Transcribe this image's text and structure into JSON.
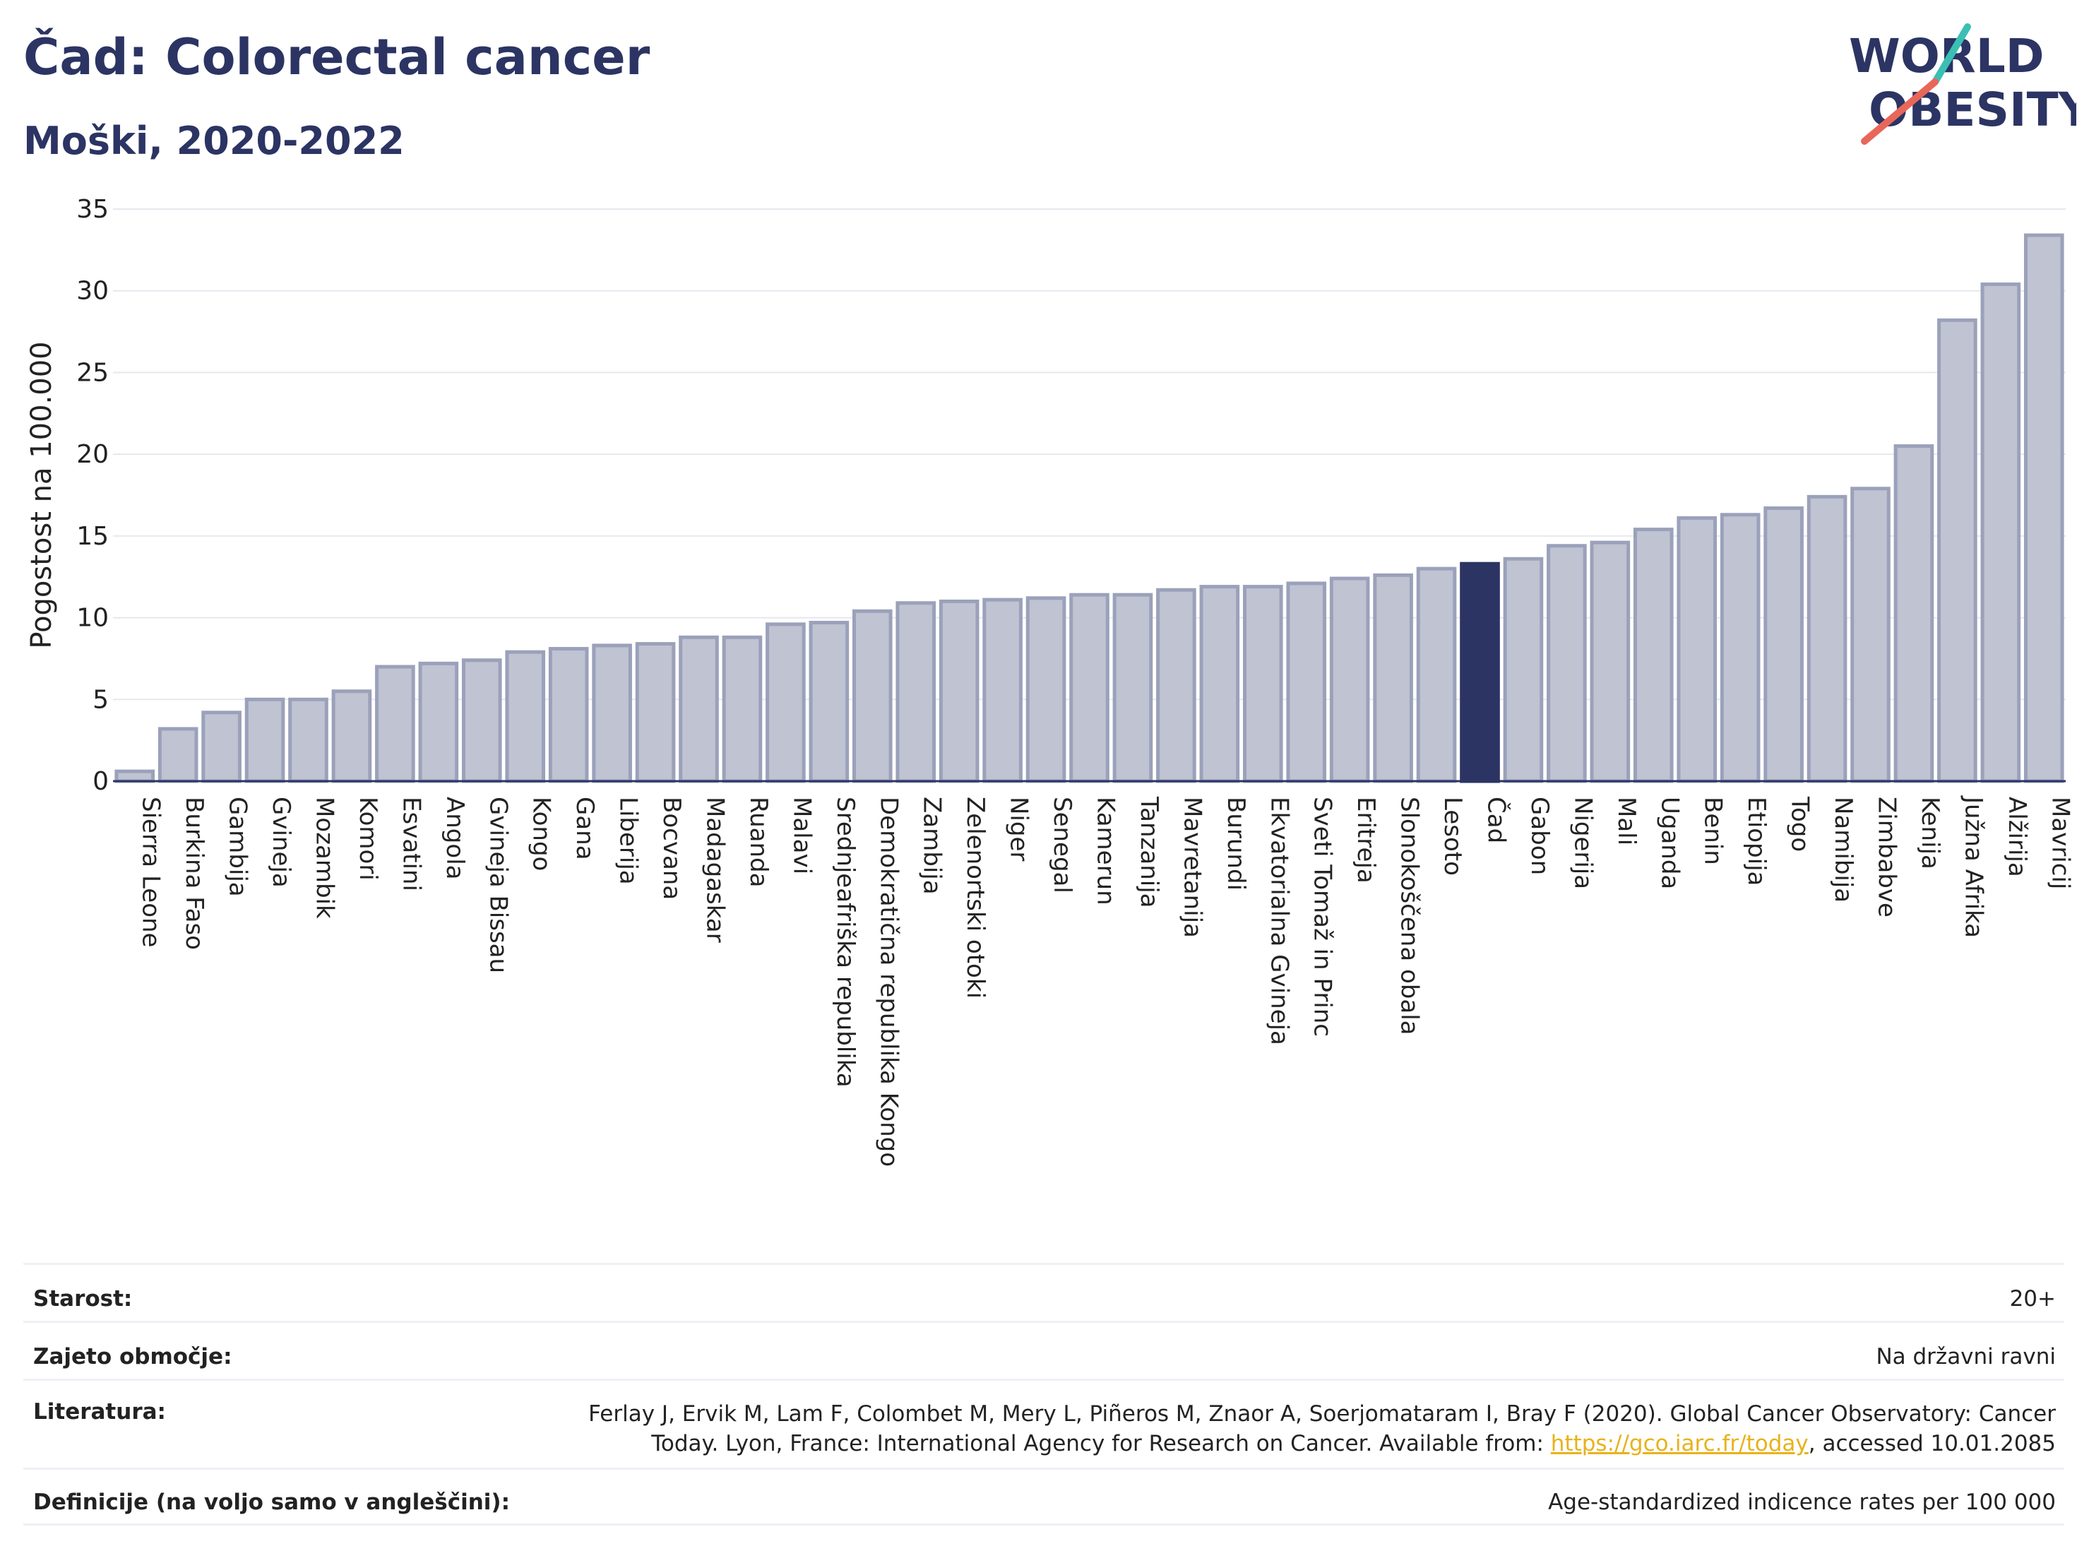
{
  "header": {
    "title": "Čad: Colorectal cancer",
    "subtitle": "Moški, 2020-2022"
  },
  "logo": {
    "line1": "WORLD",
    "line2": "OBESITY",
    "accent_teal": "#3bbfb5",
    "accent_red": "#e8675a",
    "text_color": "#2b3463"
  },
  "colors": {
    "bar": "#bfc3d2",
    "bar_border": "#9ba1ba",
    "highlight": "#2b3463"
  },
  "chart_data": {
    "type": "bar",
    "ylabel": "Pogostost na 100.000",
    "ylim": [
      0,
      35
    ],
    "yticks": [
      0,
      5,
      10,
      15,
      20,
      25,
      30,
      35
    ],
    "highlight": "Čad",
    "categories": [
      "Sierra Leone",
      "Burkina Faso",
      "Gambija",
      "Gvineja",
      "Mozambik",
      "Komori",
      "Esvatini",
      "Angola",
      "Gvineja Bissau",
      "Kongo",
      "Gana",
      "Liberija",
      "Bocvana",
      "Madagaskar",
      "Ruanda",
      "Malavi",
      "Srednjeafriška republika",
      "Demokratična republika Kongo",
      "Zambija",
      "Zelenortski otoki",
      "Niger",
      "Senegal",
      "Kamerun",
      "Tanzanija",
      "Mavretanija",
      "Burundi",
      "Ekvatorialna Gvineja",
      "Sveti Tomaž in Princ",
      "Eritreja",
      "Slonokoščena obala",
      "Lesoto",
      "Čad",
      "Gabon",
      "Nigerija",
      "Mali",
      "Uganda",
      "Benin",
      "Etiopija",
      "Togo",
      "Namibija",
      "Zimbabve",
      "Kenija",
      "Južna Afrika",
      "Alžirija",
      "Mavricij"
    ],
    "values": [
      0.6,
      3.2,
      4.2,
      5.0,
      5.0,
      5.5,
      7.0,
      7.2,
      7.4,
      7.9,
      8.1,
      8.3,
      8.4,
      8.8,
      8.8,
      9.6,
      9.7,
      10.4,
      10.9,
      11.0,
      11.1,
      11.2,
      11.4,
      11.4,
      11.7,
      11.9,
      11.9,
      12.1,
      12.4,
      12.6,
      13.0,
      13.3,
      13.6,
      14.4,
      14.6,
      15.4,
      16.1,
      16.3,
      16.7,
      17.4,
      17.9,
      20.5,
      28.2,
      30.4,
      33.4
    ]
  },
  "info": {
    "rows": [
      {
        "label": "Starost:",
        "value": "20+"
      },
      {
        "label": "Zajeto območje:",
        "value": "Na državni ravni"
      },
      {
        "label": "Literatura:",
        "value_pre": "Ferlay J, Ervik M, Lam F, Colombet M, Mery L, Piñeros M, Znaor A, Soerjomataram I, Bray F (2020). Global Cancer Observatory: Cancer Today. Lyon, France: International Agency for Research on Cancer. Available from: ",
        "link": "https://gco.iarc.fr/today",
        "value_post": ", accessed 10.01.2085"
      },
      {
        "label": "Definicije (na voljo samo v angleščini):",
        "value": "Age-standardized indicence rates per 100 000"
      }
    ]
  }
}
